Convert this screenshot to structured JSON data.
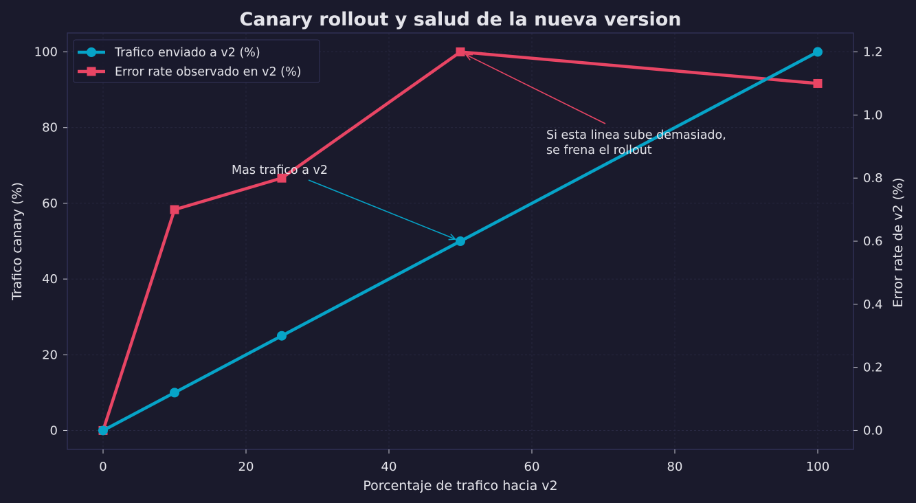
{
  "chart_data": {
    "type": "line",
    "title": "Canary rollout y salud de la nueva version",
    "xlabel": "Porcentaje de trafico hacia v2",
    "ylabel_left": "Trafico canary (%)",
    "ylabel_right": "Error rate de v2 (%)",
    "xlim": [
      -5,
      105
    ],
    "ylim_left": [
      -5,
      105
    ],
    "ylim_right": [
      -0.06,
      1.26
    ],
    "x_ticks": [
      0,
      20,
      40,
      60,
      80,
      100
    ],
    "y_ticks_left": [
      0,
      20,
      40,
      60,
      80,
      100
    ],
    "y_ticks_right": [
      "0.0",
      "0.2",
      "0.4",
      "0.6",
      "0.8",
      "1.0",
      "1.2"
    ],
    "grid": true,
    "legend_position": "top-left",
    "series": [
      {
        "name": "Trafico enviado a v2 (%)",
        "axis": "left",
        "marker": "circle",
        "color": "#06a4c8",
        "x": [
          0,
          10,
          25,
          50,
          100
        ],
        "y": [
          0,
          10,
          25,
          50,
          100
        ]
      },
      {
        "name": "Error rate observado en v2 (%)",
        "axis": "right",
        "marker": "square",
        "color": "#e84564",
        "x": [
          0,
          10,
          25,
          50,
          100
        ],
        "y": [
          0.0,
          0.7,
          0.8,
          1.2,
          1.1
        ]
      }
    ],
    "annotations": [
      {
        "lines": [
          "Mas trafico a v2"
        ],
        "target_series": 0,
        "target_x": 50,
        "target_y": 50,
        "color": "#06a4c8"
      },
      {
        "lines": [
          "Si esta linea sube demasiado,",
          "se frena el rollout"
        ],
        "target_series": 1,
        "target_x": 50,
        "target_y": 1.2,
        "color": "#e84564"
      }
    ]
  }
}
